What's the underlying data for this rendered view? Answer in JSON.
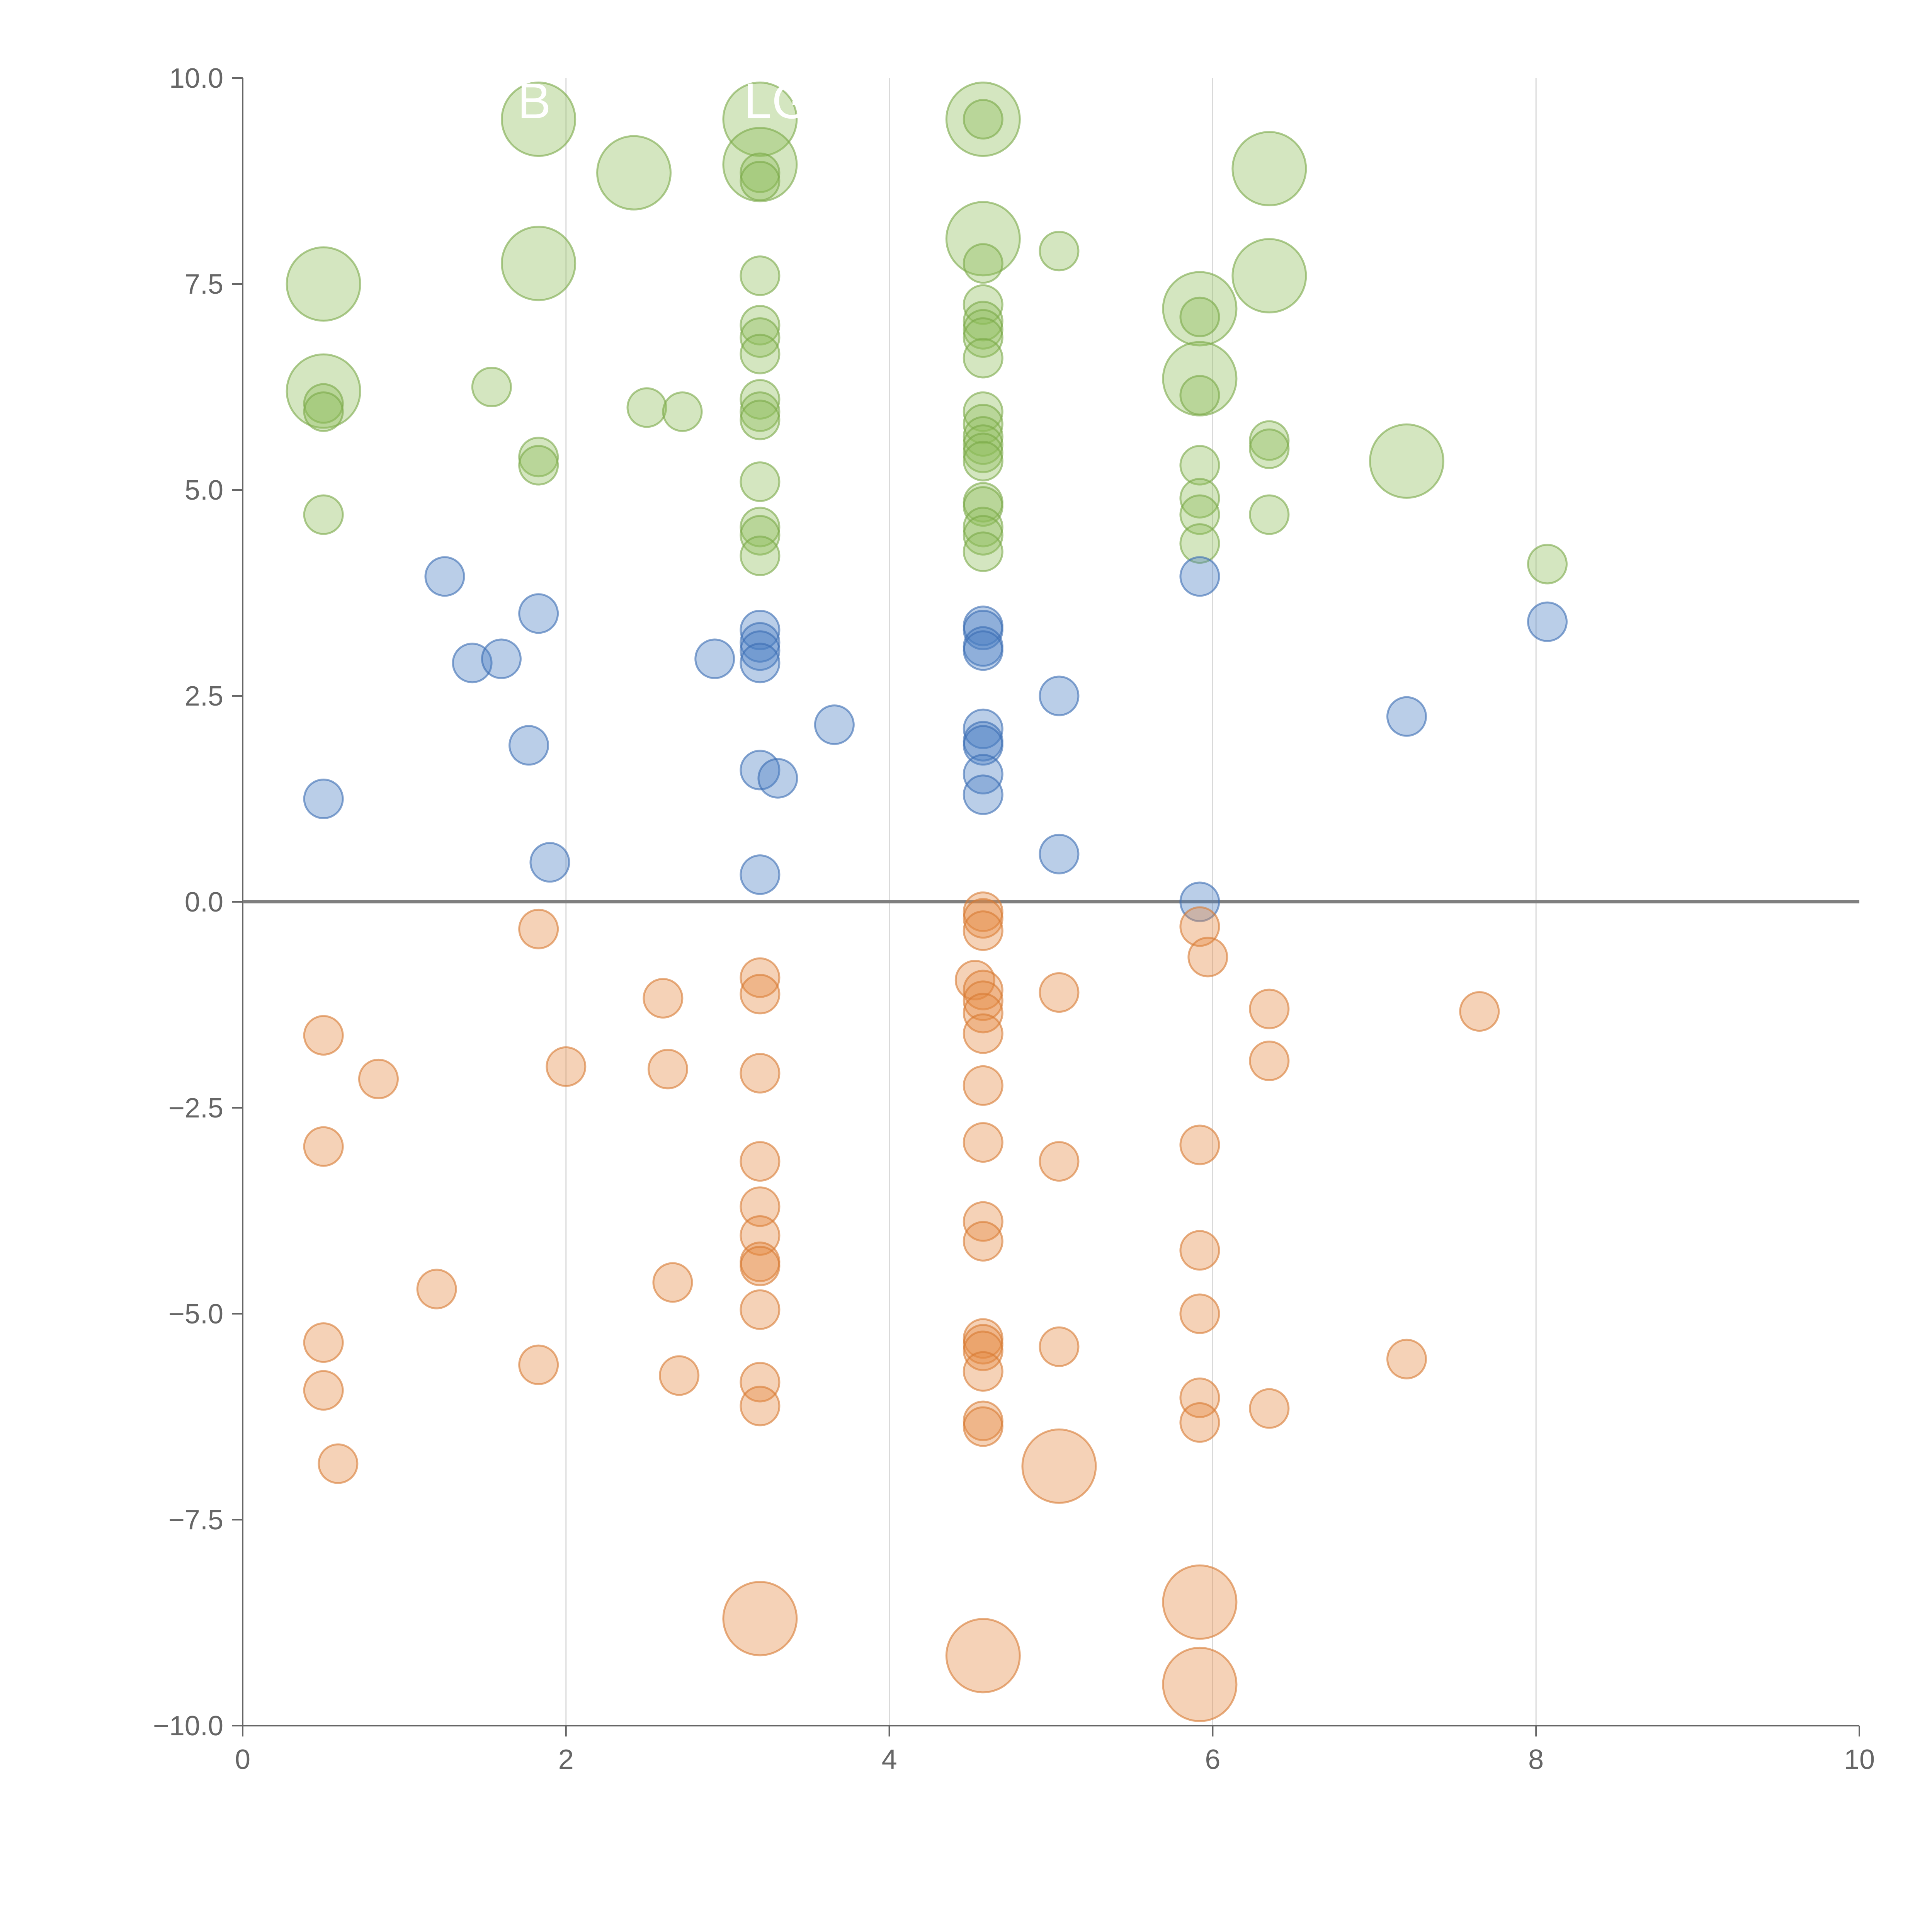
{
  "chart_data": {
    "type": "scatter",
    "title": "",
    "xlabel": "",
    "ylabel": "",
    "xlim": [
      0,
      10
    ],
    "ylim": [
      -10,
      10
    ],
    "x_ticks": [
      0,
      2,
      4,
      6,
      8,
      10
    ],
    "y_ticks": [
      -10,
      -7.5,
      -5,
      -2.5,
      0,
      2.5,
      5,
      7.5,
      10
    ],
    "x_tick_labels": [
      "0",
      "2",
      "4",
      "6",
      "8",
      "10"
    ],
    "y_tick_labels": [
      "−10.0",
      "−7.5",
      "−5.0",
      "−2.5",
      "0.0",
      "2.5",
      "5.0",
      "7.5",
      "10.0"
    ],
    "vertical_gridlines": [
      2,
      4,
      6,
      8
    ],
    "zero_line": 0,
    "colors": {
      "green_fill": "#8fbc5a",
      "green_stroke": "#7aa948",
      "blue_fill": "#4a7dc2",
      "blue_stroke": "#3b6cb2",
      "orange_fill": "#e48a42",
      "orange_stroke": "#d77a32",
      "axis": "#666666",
      "grid": "#d9d9d9",
      "zero_line": "#7f7f7f"
    },
    "annotations": [
      {
        "text": "B",
        "x": 1.7,
        "y": 9.7
      },
      {
        "text": "LG",
        "x": 3.1,
        "y": 9.7
      }
    ],
    "series": [
      {
        "color_key": "green",
        "points": [
          {
            "x": 1.83,
            "y": 9.5,
            "size": 3
          },
          {
            "x": 2.42,
            "y": 8.85,
            "size": 3
          },
          {
            "x": 3.2,
            "y": 9.5,
            "size": 3
          },
          {
            "x": 3.2,
            "y": 8.95,
            "size": 3
          },
          {
            "x": 3.2,
            "y": 8.85,
            "size": 1
          },
          {
            "x": 3.2,
            "y": 8.75,
            "size": 1
          },
          {
            "x": 4.58,
            "y": 9.5,
            "size": 3
          },
          {
            "x": 4.58,
            "y": 9.5,
            "size": 1
          },
          {
            "x": 4.58,
            "y": 8.05,
            "size": 3
          },
          {
            "x": 4.58,
            "y": 7.75,
            "size": 1
          },
          {
            "x": 5.05,
            "y": 7.9,
            "size": 1
          },
          {
            "x": 6.35,
            "y": 8.9,
            "size": 3
          },
          {
            "x": 6.35,
            "y": 7.6,
            "size": 3
          },
          {
            "x": 0.5,
            "y": 7.5,
            "size": 3
          },
          {
            "x": 1.83,
            "y": 7.75,
            "size": 3
          },
          {
            "x": 3.2,
            "y": 7.6,
            "size": 1
          },
          {
            "x": 4.58,
            "y": 7.25,
            "size": 1
          },
          {
            "x": 4.58,
            "y": 7.05,
            "size": 1
          },
          {
            "x": 4.58,
            "y": 6.95,
            "size": 1
          },
          {
            "x": 4.58,
            "y": 6.85,
            "size": 1
          },
          {
            "x": 4.58,
            "y": 6.6,
            "size": 1
          },
          {
            "x": 3.2,
            "y": 7.0,
            "size": 1
          },
          {
            "x": 3.2,
            "y": 6.85,
            "size": 1
          },
          {
            "x": 3.2,
            "y": 6.65,
            "size": 1
          },
          {
            "x": 3.2,
            "y": 6.1,
            "size": 1
          },
          {
            "x": 3.2,
            "y": 5.95,
            "size": 1
          },
          {
            "x": 3.2,
            "y": 5.85,
            "size": 1
          },
          {
            "x": 5.92,
            "y": 7.2,
            "size": 3
          },
          {
            "x": 5.92,
            "y": 7.1,
            "size": 1
          },
          {
            "x": 5.92,
            "y": 6.35,
            "size": 3
          },
          {
            "x": 5.92,
            "y": 6.15,
            "size": 1
          },
          {
            "x": 0.5,
            "y": 6.2,
            "size": 3
          },
          {
            "x": 0.5,
            "y": 6.05,
            "size": 1
          },
          {
            "x": 0.5,
            "y": 5.95,
            "size": 1
          },
          {
            "x": 1.54,
            "y": 6.25,
            "size": 1
          },
          {
            "x": 2.5,
            "y": 6.0,
            "size": 1
          },
          {
            "x": 2.72,
            "y": 5.95,
            "size": 1
          },
          {
            "x": 4.58,
            "y": 5.95,
            "size": 1
          },
          {
            "x": 4.58,
            "y": 5.8,
            "size": 1
          },
          {
            "x": 4.58,
            "y": 5.65,
            "size": 1
          },
          {
            "x": 4.58,
            "y": 5.55,
            "size": 1
          },
          {
            "x": 4.58,
            "y": 5.45,
            "size": 1
          },
          {
            "x": 4.58,
            "y": 5.35,
            "size": 1
          },
          {
            "x": 6.35,
            "y": 5.6,
            "size": 1
          },
          {
            "x": 6.35,
            "y": 5.5,
            "size": 1
          },
          {
            "x": 7.2,
            "y": 5.35,
            "size": 3
          },
          {
            "x": 1.83,
            "y": 5.4,
            "size": 1
          },
          {
            "x": 1.83,
            "y": 5.3,
            "size": 1
          },
          {
            "x": 3.2,
            "y": 5.1,
            "size": 1
          },
          {
            "x": 5.92,
            "y": 5.3,
            "size": 1
          },
          {
            "x": 5.92,
            "y": 4.9,
            "size": 1
          },
          {
            "x": 5.92,
            "y": 4.7,
            "size": 1
          },
          {
            "x": 5.92,
            "y": 4.35,
            "size": 1
          },
          {
            "x": 0.5,
            "y": 4.7,
            "size": 1
          },
          {
            "x": 4.58,
            "y": 4.85,
            "size": 1
          },
          {
            "x": 4.58,
            "y": 4.8,
            "size": 1
          },
          {
            "x": 4.58,
            "y": 4.55,
            "size": 1
          },
          {
            "x": 4.58,
            "y": 4.45,
            "size": 1
          },
          {
            "x": 4.58,
            "y": 4.25,
            "size": 1
          },
          {
            "x": 6.35,
            "y": 4.7,
            "size": 1
          },
          {
            "x": 3.2,
            "y": 4.55,
            "size": 1
          },
          {
            "x": 3.2,
            "y": 4.45,
            "size": 1
          },
          {
            "x": 3.2,
            "y": 4.2,
            "size": 1
          },
          {
            "x": 8.07,
            "y": 4.1,
            "size": 1
          }
        ]
      },
      {
        "color_key": "blue",
        "points": [
          {
            "x": 1.25,
            "y": 3.95,
            "size": 1
          },
          {
            "x": 5.92,
            "y": 3.95,
            "size": 1
          },
          {
            "x": 1.83,
            "y": 3.5,
            "size": 1
          },
          {
            "x": 8.07,
            "y": 3.4,
            "size": 1
          },
          {
            "x": 3.2,
            "y": 3.3,
            "size": 1
          },
          {
            "x": 3.2,
            "y": 3.15,
            "size": 1
          },
          {
            "x": 3.2,
            "y": 3.05,
            "size": 1
          },
          {
            "x": 3.2,
            "y": 2.9,
            "size": 1
          },
          {
            "x": 4.58,
            "y": 3.35,
            "size": 1
          },
          {
            "x": 4.58,
            "y": 3.3,
            "size": 1
          },
          {
            "x": 4.58,
            "y": 3.1,
            "size": 1
          },
          {
            "x": 4.58,
            "y": 3.05,
            "size": 1
          },
          {
            "x": 1.42,
            "y": 2.9,
            "size": 1
          },
          {
            "x": 1.6,
            "y": 2.95,
            "size": 1
          },
          {
            "x": 2.92,
            "y": 2.95,
            "size": 1
          },
          {
            "x": 5.05,
            "y": 2.5,
            "size": 1
          },
          {
            "x": 7.2,
            "y": 2.25,
            "size": 1
          },
          {
            "x": 3.66,
            "y": 2.15,
            "size": 1
          },
          {
            "x": 4.58,
            "y": 2.1,
            "size": 1
          },
          {
            "x": 4.58,
            "y": 1.95,
            "size": 1
          },
          {
            "x": 4.58,
            "y": 1.9,
            "size": 1
          },
          {
            "x": 1.77,
            "y": 1.9,
            "size": 1
          },
          {
            "x": 3.2,
            "y": 1.6,
            "size": 1
          },
          {
            "x": 3.31,
            "y": 1.5,
            "size": 1
          },
          {
            "x": 4.58,
            "y": 1.55,
            "size": 1
          },
          {
            "x": 4.58,
            "y": 1.3,
            "size": 1
          },
          {
            "x": 0.5,
            "y": 1.25,
            "size": 1
          },
          {
            "x": 1.9,
            "y": 0.48,
            "size": 1
          },
          {
            "x": 5.05,
            "y": 0.58,
            "size": 1
          },
          {
            "x": 3.2,
            "y": 0.33,
            "size": 1
          },
          {
            "x": 5.92,
            "y": 0.0,
            "size": 1
          }
        ]
      },
      {
        "color_key": "orange",
        "points": [
          {
            "x": 4.58,
            "y": -0.12,
            "size": 1
          },
          {
            "x": 4.58,
            "y": -0.2,
            "size": 1
          },
          {
            "x": 4.58,
            "y": -0.35,
            "size": 1
          },
          {
            "x": 1.83,
            "y": -0.33,
            "size": 1
          },
          {
            "x": 5.92,
            "y": -0.3,
            "size": 1
          },
          {
            "x": 5.97,
            "y": -0.67,
            "size": 1
          },
          {
            "x": 3.2,
            "y": -0.92,
            "size": 1
          },
          {
            "x": 3.2,
            "y": -1.12,
            "size": 1
          },
          {
            "x": 4.53,
            "y": -0.95,
            "size": 1
          },
          {
            "x": 4.58,
            "y": -1.07,
            "size": 1
          },
          {
            "x": 4.58,
            "y": -1.2,
            "size": 1
          },
          {
            "x": 4.58,
            "y": -1.35,
            "size": 1
          },
          {
            "x": 4.58,
            "y": -1.6,
            "size": 1
          },
          {
            "x": 2.6,
            "y": -1.17,
            "size": 1
          },
          {
            "x": 5.05,
            "y": -1.1,
            "size": 1
          },
          {
            "x": 6.35,
            "y": -1.3,
            "size": 1
          },
          {
            "x": 7.65,
            "y": -1.33,
            "size": 1
          },
          {
            "x": 0.5,
            "y": -1.62,
            "size": 1
          },
          {
            "x": 6.35,
            "y": -1.93,
            "size": 1
          },
          {
            "x": 2.0,
            "y": -2.0,
            "size": 1
          },
          {
            "x": 2.63,
            "y": -2.03,
            "size": 1
          },
          {
            "x": 3.2,
            "y": -2.08,
            "size": 1
          },
          {
            "x": 0.84,
            "y": -2.15,
            "size": 1
          },
          {
            "x": 4.58,
            "y": -2.23,
            "size": 1
          },
          {
            "x": 0.5,
            "y": -2.97,
            "size": 1
          },
          {
            "x": 4.58,
            "y": -2.92,
            "size": 1
          },
          {
            "x": 5.92,
            "y": -2.95,
            "size": 1
          },
          {
            "x": 3.2,
            "y": -3.15,
            "size": 1
          },
          {
            "x": 5.05,
            "y": -3.15,
            "size": 1
          },
          {
            "x": 3.2,
            "y": -3.7,
            "size": 1
          },
          {
            "x": 3.2,
            "y": -4.05,
            "size": 1
          },
          {
            "x": 3.2,
            "y": -4.37,
            "size": 1
          },
          {
            "x": 3.2,
            "y": -4.42,
            "size": 1
          },
          {
            "x": 4.58,
            "y": -3.88,
            "size": 1
          },
          {
            "x": 4.58,
            "y": -4.12,
            "size": 1
          },
          {
            "x": 5.92,
            "y": -4.23,
            "size": 1
          },
          {
            "x": 2.66,
            "y": -4.62,
            "size": 1
          },
          {
            "x": 1.2,
            "y": -4.7,
            "size": 1
          },
          {
            "x": 3.2,
            "y": -4.95,
            "size": 1
          },
          {
            "x": 5.92,
            "y": -5.0,
            "size": 1
          },
          {
            "x": 0.5,
            "y": -5.35,
            "size": 1
          },
          {
            "x": 4.58,
            "y": -5.3,
            "size": 1
          },
          {
            "x": 4.58,
            "y": -5.37,
            "size": 1
          },
          {
            "x": 4.58,
            "y": -5.45,
            "size": 1
          },
          {
            "x": 4.58,
            "y": -5.7,
            "size": 1
          },
          {
            "x": 5.05,
            "y": -5.4,
            "size": 1
          },
          {
            "x": 7.2,
            "y": -5.55,
            "size": 1
          },
          {
            "x": 1.83,
            "y": -5.62,
            "size": 1
          },
          {
            "x": 2.7,
            "y": -5.75,
            "size": 1
          },
          {
            "x": 3.2,
            "y": -5.83,
            "size": 1
          },
          {
            "x": 0.5,
            "y": -5.93,
            "size": 1
          },
          {
            "x": 3.2,
            "y": -6.12,
            "size": 1
          },
          {
            "x": 5.92,
            "y": -6.02,
            "size": 1
          },
          {
            "x": 6.35,
            "y": -6.15,
            "size": 1
          },
          {
            "x": 4.58,
            "y": -6.3,
            "size": 1
          },
          {
            "x": 4.58,
            "y": -6.37,
            "size": 1
          },
          {
            "x": 5.92,
            "y": -6.32,
            "size": 1
          },
          {
            "x": 0.59,
            "y": -6.82,
            "size": 1
          },
          {
            "x": 5.05,
            "y": -6.85,
            "size": 3
          },
          {
            "x": 3.2,
            "y": -8.7,
            "size": 3
          },
          {
            "x": 5.92,
            "y": -8.5,
            "size": 3
          },
          {
            "x": 4.58,
            "y": -9.15,
            "size": 3
          },
          {
            "x": 5.92,
            "y": -9.5,
            "size": 3
          }
        ]
      }
    ]
  }
}
